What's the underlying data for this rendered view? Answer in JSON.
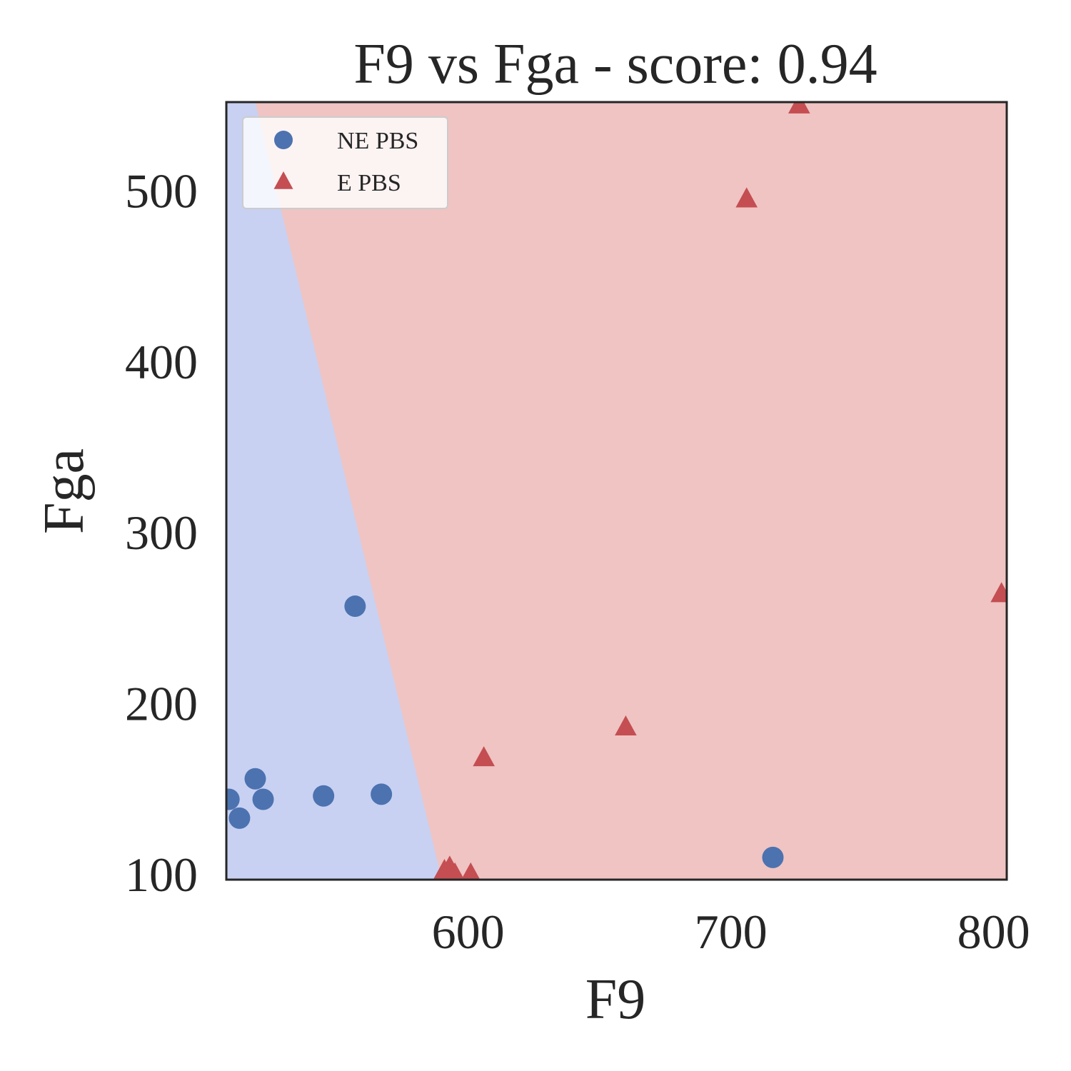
{
  "chart_data": {
    "type": "scatter",
    "title": "F9 vs Fga - score: 0.94",
    "xlabel": "F9",
    "ylabel": "Fga",
    "xlim": [
      508,
      805
    ],
    "ylim": [
      97,
      552
    ],
    "xticks": [
      600,
      700,
      800
    ],
    "yticks": [
      100,
      200,
      300,
      400,
      500
    ],
    "grid": false,
    "legend_position": "upper-left",
    "decision_regions": {
      "boundary": [
        [
          519,
          552
        ],
        [
          590,
          97
        ]
      ],
      "left_class": "NE PBS",
      "right_class": "E PBS",
      "left_color": "#c8d1f2",
      "right_color": "#efc4c3"
    },
    "series": [
      {
        "name": "NE PBS",
        "marker": "circle",
        "color": "#4c72b0",
        "points": [
          [
            509,
            144
          ],
          [
            513,
            133
          ],
          [
            519,
            156
          ],
          [
            522,
            144
          ],
          [
            545,
            146
          ],
          [
            557,
            257
          ],
          [
            567,
            147
          ],
          [
            716,
            110
          ]
        ]
      },
      {
        "name": "E PBS",
        "marker": "triangle",
        "color": "#c44e52",
        "points": [
          [
            591,
            102
          ],
          [
            593,
            104
          ],
          [
            595,
            100
          ],
          [
            601,
            100
          ],
          [
            606,
            168
          ],
          [
            660,
            186
          ],
          [
            706,
            495
          ],
          [
            726,
            550
          ],
          [
            803,
            264
          ]
        ]
      }
    ]
  }
}
